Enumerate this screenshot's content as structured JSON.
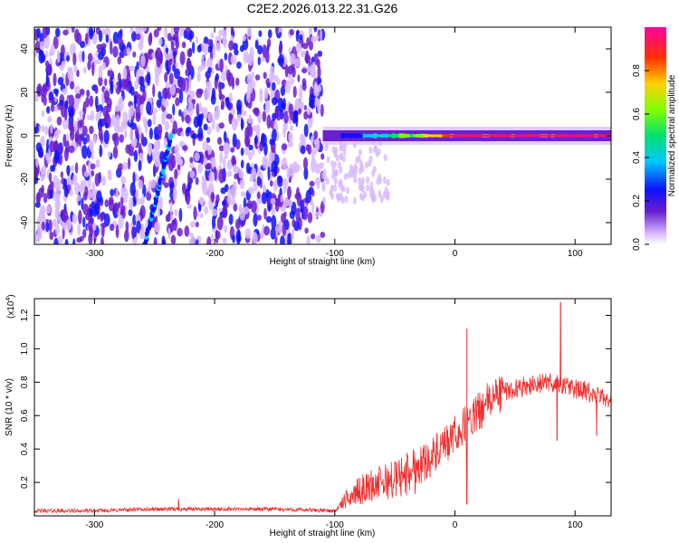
{
  "title": "C2E2.2026.013.22.31.G26",
  "chart_data": [
    {
      "type": "heatmap",
      "title": "C2E2.2026.013.22.31.G26",
      "xlabel": "Height of straight line (km)",
      "ylabel": "Frequency (Hz)",
      "xlim": [
        -350,
        130
      ],
      "ylim": [
        -50,
        50
      ],
      "x_ticks": [
        -300,
        -200,
        -100,
        0,
        100
      ],
      "y_ticks": [
        -40,
        -20,
        0,
        20,
        40
      ],
      "colorbar": {
        "label": "Normalized spectral amplitude",
        "range": [
          0.0,
          1.0
        ],
        "ticks": [
          0.0,
          0.2,
          0.4,
          0.6,
          0.8
        ],
        "colormap": [
          "#ffffff",
          "#d8b8ff",
          "#6a1fd0",
          "#1010ff",
          "#00c8ff",
          "#00e070",
          "#80ff00",
          "#ffd000",
          "#ff3000",
          "#ff00a0"
        ]
      },
      "features": {
        "noise_region_x": [
          -350,
          -110
        ],
        "tone_line": {
          "x": [
            -110,
            130
          ],
          "y": 0,
          "amplitude_range": [
            0.2,
            1.0
          ]
        },
        "diagonal_streak": {
          "x": [
            -258,
            -236
          ],
          "y": [
            -50,
            0
          ]
        }
      }
    },
    {
      "type": "line",
      "xlabel": "Height of straight line (km)",
      "ylabel": "SNR (10 * v/v)",
      "y_multiplier": "(x10^4)",
      "xlim": [
        -350,
        130
      ],
      "ylim": [
        0,
        1.3
      ],
      "x_ticks": [
        -300,
        -200,
        -100,
        0,
        100
      ],
      "y_ticks": [
        0.2,
        0.4,
        0.6,
        0.8,
        1.0,
        1.2
      ],
      "series": [
        {
          "color": "#ee3030",
          "x": [
            -350,
            -300,
            -250,
            -200,
            -150,
            -100,
            -90,
            -80,
            -70,
            -60,
            -50,
            -40,
            -30,
            -20,
            -10,
            0,
            10,
            20,
            30,
            40,
            50,
            60,
            70,
            80,
            90,
            100,
            110,
            120,
            130
          ],
          "y": [
            0.03,
            0.03,
            0.04,
            0.04,
            0.04,
            0.03,
            0.1,
            0.15,
            0.18,
            0.2,
            0.22,
            0.25,
            0.3,
            0.35,
            0.4,
            0.48,
            0.55,
            0.62,
            0.7,
            0.74,
            0.76,
            0.78,
            0.79,
            0.8,
            0.78,
            0.76,
            0.74,
            0.71,
            0.7
          ]
        }
      ],
      "spikes": [
        {
          "x": 10,
          "y": 1.12
        },
        {
          "x": 10,
          "y": 0.07
        },
        {
          "x": 88,
          "y": 1.28
        },
        {
          "x": 85,
          "y": 0.45
        },
        {
          "x": 118,
          "y": 0.48
        },
        {
          "x": -230,
          "y": 0.1
        }
      ]
    }
  ]
}
